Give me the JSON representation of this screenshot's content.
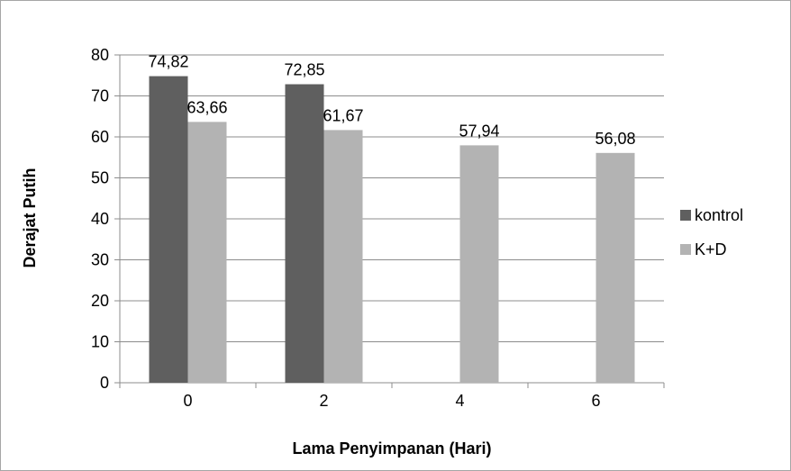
{
  "chart_data": {
    "type": "bar",
    "categories": [
      "0",
      "2",
      "4",
      "6"
    ],
    "series": [
      {
        "name": "kontrol",
        "values": [
          74.82,
          72.85,
          null,
          null
        ],
        "labels": [
          "74,82",
          "72,85",
          "",
          ""
        ],
        "color": "#5f5f5f"
      },
      {
        "name": "K+D",
        "values": [
          63.66,
          61.67,
          57.94,
          56.08
        ],
        "labels": [
          "63,66",
          "61,67",
          "57,94",
          "56,08"
        ],
        "color": "#b3b3b3"
      }
    ],
    "title": "",
    "xlabel": "Lama Penyimpanan (Hari)",
    "ylabel": "Derajat Putih",
    "ylim": [
      0,
      80
    ],
    "yticks": [
      0,
      10,
      20,
      30,
      40,
      50,
      60,
      70,
      80
    ],
    "grid": true,
    "legend": "right"
  }
}
